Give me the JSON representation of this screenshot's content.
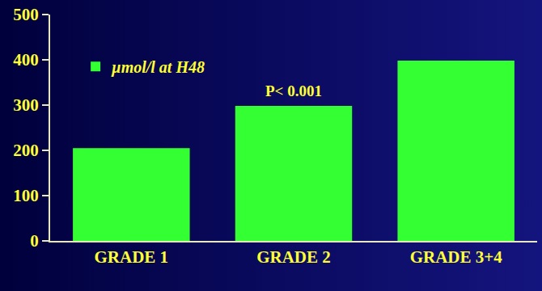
{
  "chart_data": {
    "type": "bar",
    "categories": [
      "GRADE 1",
      "GRADE 2",
      "GRADE 3+4"
    ],
    "series": [
      {
        "name": "µmol/l at H48",
        "color": "#33ff33",
        "values": [
          205,
          298,
          398
        ]
      }
    ],
    "annotations": [
      {
        "text": "P< 0.001",
        "x": "GRADE 2"
      }
    ],
    "ylim": [
      0,
      500
    ],
    "yticks": [
      0,
      100,
      200,
      300,
      400,
      500
    ],
    "grid": false,
    "legend": "upper left"
  }
}
